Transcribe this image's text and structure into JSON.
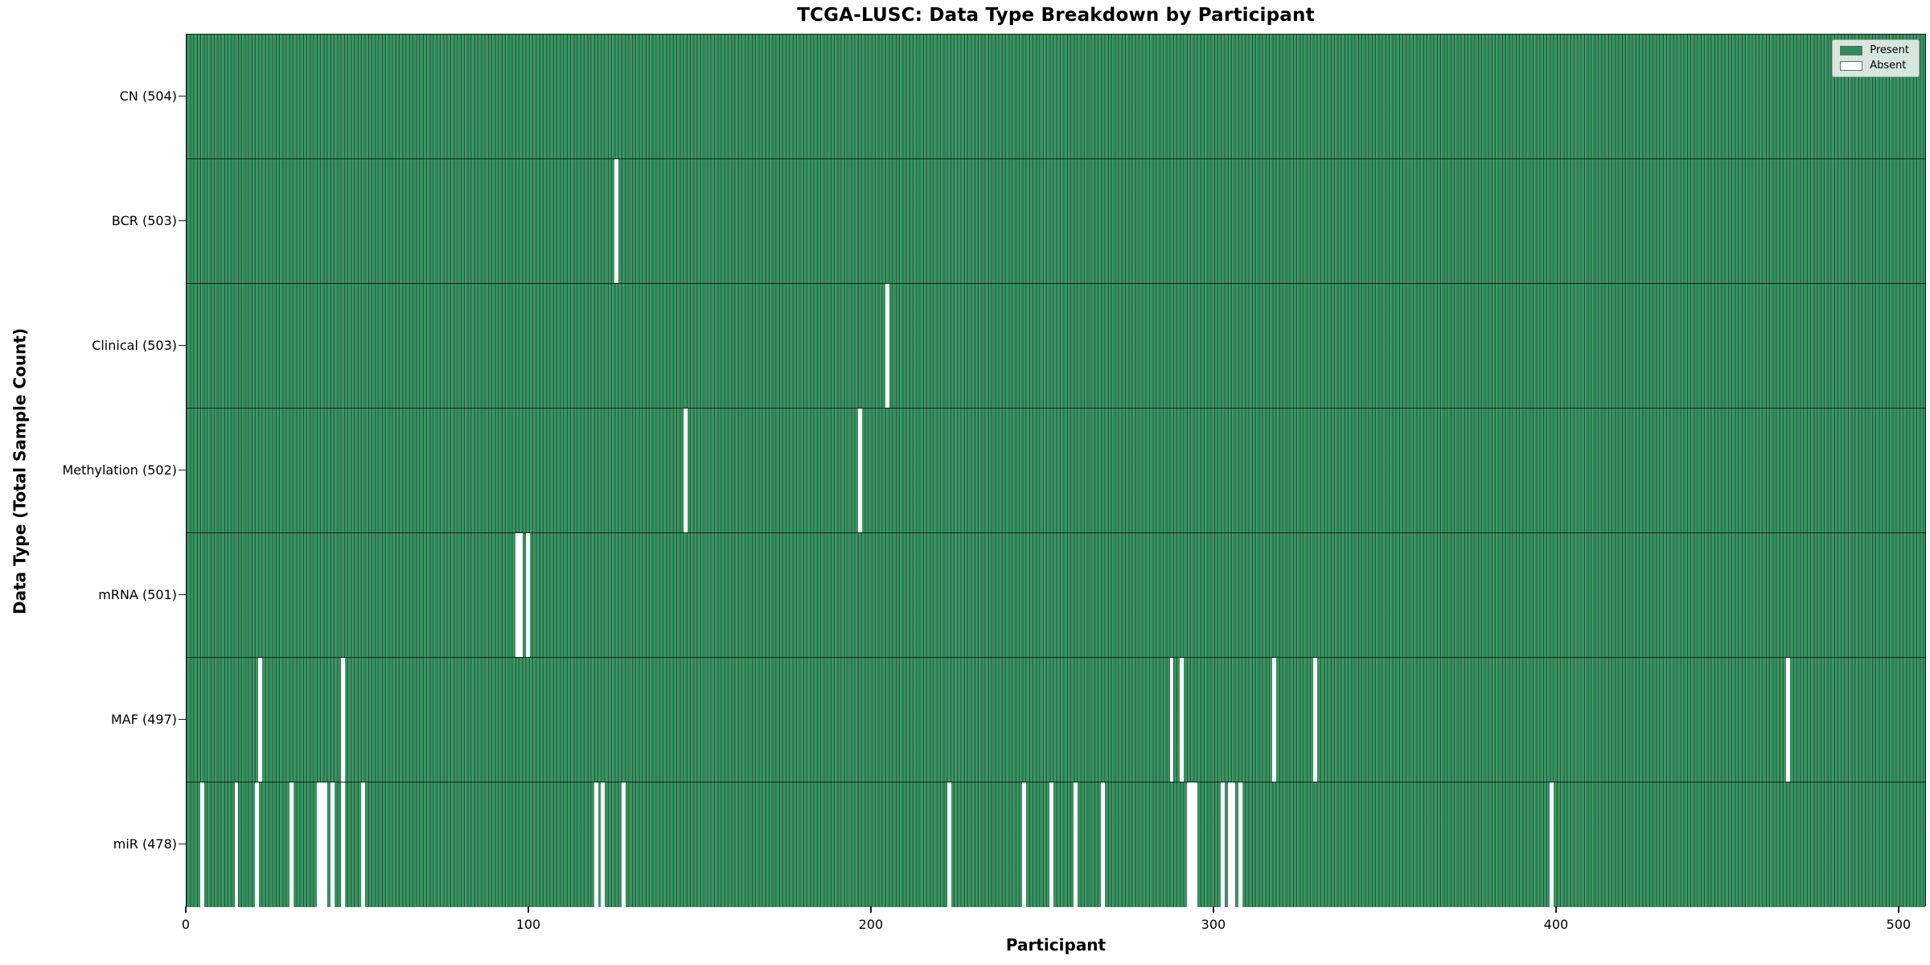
{
  "chart_data": {
    "type": "heatmap",
    "title": "TCGA-LUSC: Data Type Breakdown by Participant",
    "xlabel": "Participant",
    "ylabel": "Data Type (Total Sample Count)",
    "x_ticks": [
      0,
      100,
      200,
      300,
      400,
      500
    ],
    "x_range": [
      0,
      508
    ],
    "n_participants": 504,
    "grid": false,
    "legend_position": "upper right",
    "legend": [
      {
        "label": "Present",
        "color": "#2e8b57"
      },
      {
        "label": "Absent",
        "color": "#ffffff"
      }
    ],
    "colors": {
      "present_fill": "#36925f",
      "bar_edge": "#0a2919",
      "absent_fill": "#ffffff",
      "plot_border": "#1a1a1a"
    },
    "rows": [
      {
        "data_type": "CN",
        "label": "CN (504)",
        "present_count": 504,
        "absent_participants": []
      },
      {
        "data_type": "BCR",
        "label": "BCR (503)",
        "present_count": 503,
        "absent_participants": [
          125
        ]
      },
      {
        "data_type": "Clinical",
        "label": "Clinical (503)",
        "present_count": 503,
        "absent_participants": [
          204
        ]
      },
      {
        "data_type": "Methylation",
        "label": "Methylation (502)",
        "present_count": 502,
        "absent_participants": [
          145,
          196
        ]
      },
      {
        "data_type": "mRNA",
        "label": "mRNA (501)",
        "present_count": 501,
        "absent_participants": [
          96,
          97,
          99
        ]
      },
      {
        "data_type": "MAF",
        "label": "MAF (497)",
        "present_count": 497,
        "absent_participants": [
          21,
          45,
          287,
          290,
          317,
          329,
          467
        ]
      },
      {
        "data_type": "miR",
        "label": "miR (478)",
        "present_count": 478,
        "absent_participants": [
          4,
          14,
          20,
          30,
          38,
          39,
          40,
          42,
          45,
          51,
          119,
          121,
          127,
          222,
          244,
          252,
          259,
          267,
          292,
          293,
          294,
          302,
          304,
          305,
          307,
          398
        ]
      }
    ]
  }
}
